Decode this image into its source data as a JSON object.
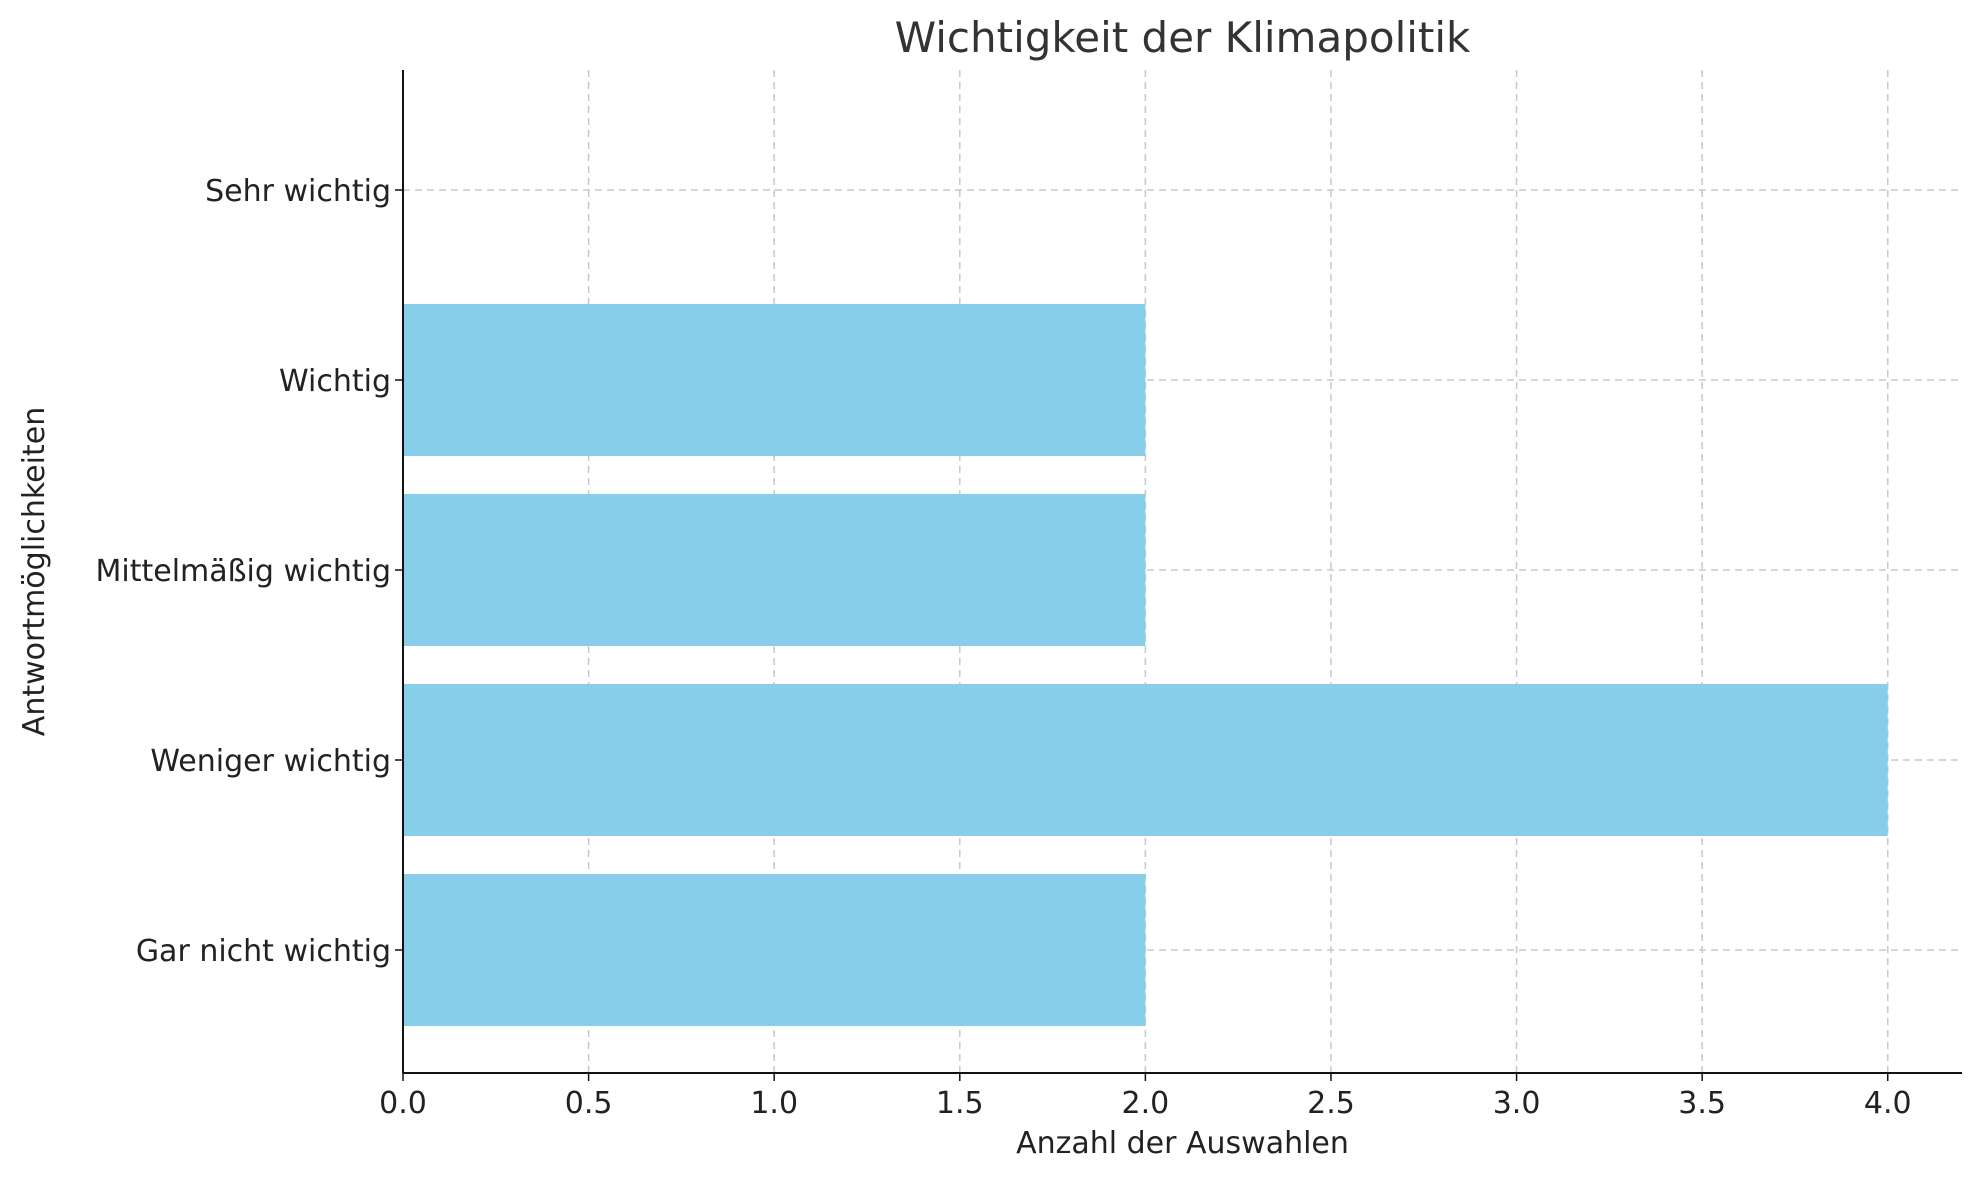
{
  "chart_data": {
    "type": "bar",
    "orientation": "horizontal",
    "title": "Wichtigkeit der Klimapolitik",
    "xlabel": "Anzahl der Auswahlen",
    "ylabel": "Antwortmöglichkeiten",
    "categories": [
      "Gar nicht wichtig",
      "Weniger wichtig",
      "Mittelmäßig wichtig",
      "Wichtig",
      "Sehr wichtig"
    ],
    "values": [
      2,
      4,
      2,
      2,
      0
    ],
    "xlim": [
      0,
      4.2
    ],
    "x_ticks": [
      "0.0",
      "0.5",
      "1.0",
      "1.5",
      "2.0",
      "2.5",
      "3.0",
      "3.5",
      "4.0"
    ],
    "grid": true,
    "bar_color": "#87ceeb"
  }
}
